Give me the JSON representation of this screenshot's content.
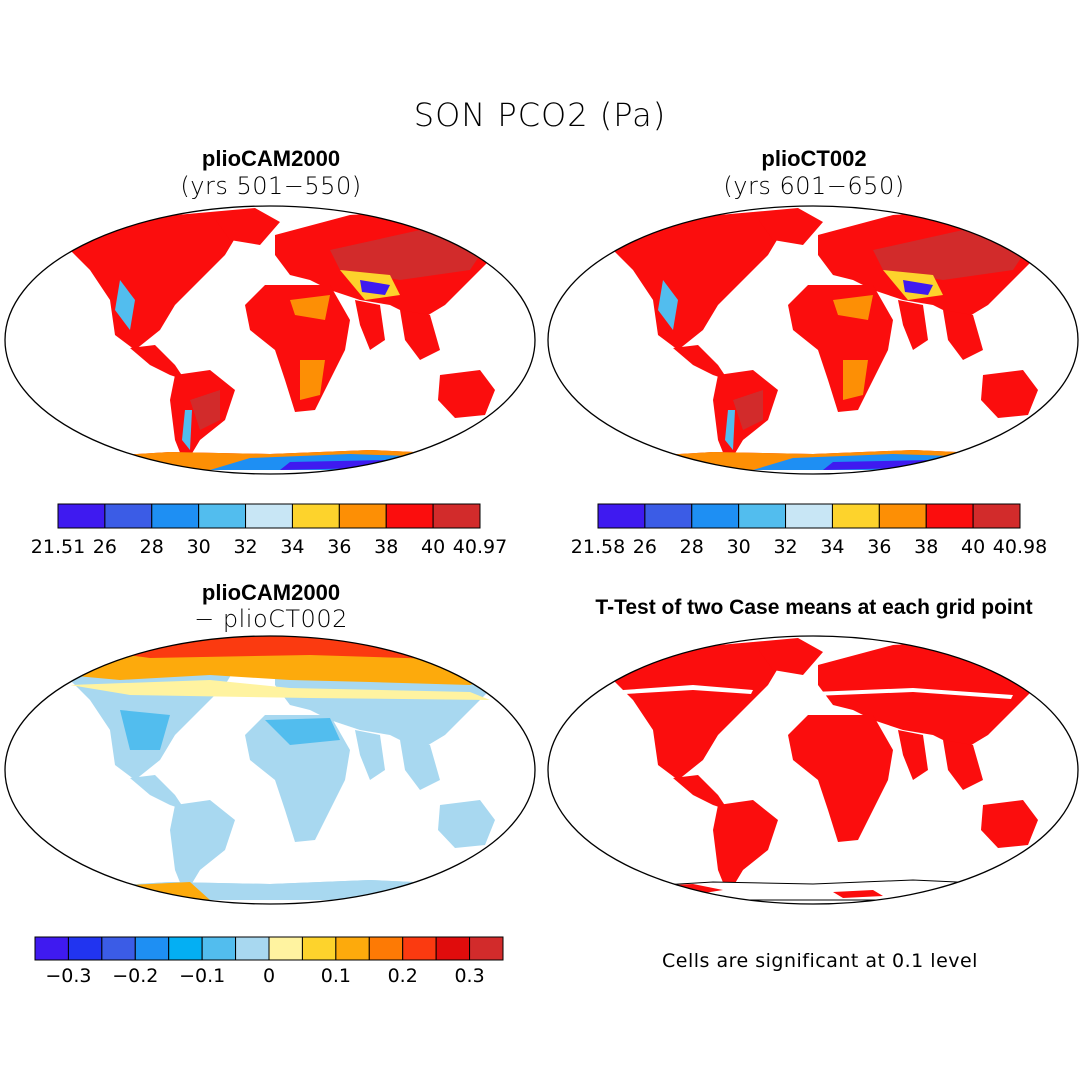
{
  "title": "SON PCO2 (Pa)",
  "panels": [
    {
      "title": "plioCAM2000",
      "subtitle": "(yrs 501−550)"
    },
    {
      "title": "plioCT002",
      "subtitle": "(yrs 601−650)"
    },
    {
      "title": "plioCAM2000",
      "subtitle": "− plioCT002"
    },
    {
      "title": "T-Test of two Case means at each grid point",
      "subtitle": ""
    }
  ],
  "colorbars": [
    {
      "labels": [
        "21.51",
        "26",
        "28",
        "30",
        "32",
        "34",
        "36",
        "38",
        "40",
        "40.97"
      ],
      "colors": [
        "#3f1af0",
        "#3b5ce6",
        "#1e8ff3",
        "#52bdee",
        "#c8e6f5",
        "#fdd32c",
        "#fd8f05",
        "#fb0d0d",
        "#d22b2b"
      ]
    },
    {
      "labels": [
        "21.58",
        "26",
        "28",
        "30",
        "32",
        "34",
        "36",
        "38",
        "40",
        "40.98"
      ],
      "colors": [
        "#3f1af0",
        "#3b5ce6",
        "#1e8ff3",
        "#52bdee",
        "#c8e6f5",
        "#fdd32c",
        "#fd8f05",
        "#fb0d0d",
        "#d22b2b"
      ]
    },
    {
      "labels": [
        "−0.3",
        "−0.2",
        "−0.1",
        "0",
        "0.1",
        "0.2",
        "0.3"
      ],
      "colors": [
        "#3f1af0",
        "#2134f0",
        "#3b5ce6",
        "#1e8ff3",
        "#04aff3",
        "#52bdee",
        "#a8d8f0",
        "#fff3a0",
        "#fdd32c",
        "#fdaa0c",
        "#fd7a05",
        "#fb3a10",
        "#e00c0c",
        "#d22b2b"
      ]
    }
  ],
  "significance_note": "Cells are significant at 0.1 level"
}
